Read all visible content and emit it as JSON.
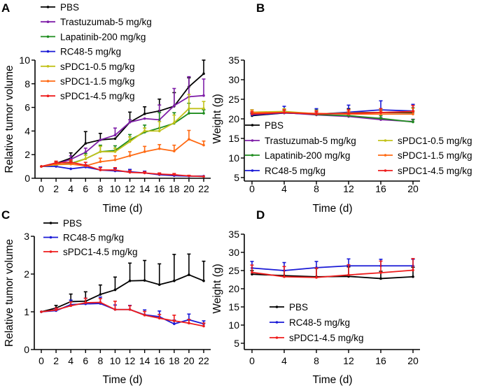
{
  "chart_data": [
    {
      "panel": "A",
      "type": "line",
      "title": "",
      "xlabel": "Time (d)",
      "ylabel": "Relative tumor volume",
      "x": [
        0,
        2,
        4,
        6,
        8,
        10,
        12,
        14,
        16,
        18,
        20,
        22
      ],
      "xticks": [
        "0",
        "2",
        "4",
        "6",
        "8",
        "10",
        "12",
        "14",
        "16",
        "18",
        "20",
        "22"
      ],
      "yticks": [
        "0",
        "2",
        "4",
        "6",
        "8",
        "10"
      ],
      "xlim": [
        0,
        22
      ],
      "ylim": [
        0,
        10
      ],
      "legend_position": "top-left",
      "series": [
        {
          "name": "PBS",
          "color": "#000000",
          "values": [
            1.0,
            1.25,
            1.7,
            2.95,
            3.25,
            3.35,
            4.75,
            5.45,
            5.7,
            6.1,
            7.75,
            8.85
          ],
          "err": [
            0,
            0.15,
            0.45,
            1.0,
            0.55,
            0,
            0.85,
            0.6,
            1.0,
            1.15,
            0.75,
            1.15
          ]
        },
        {
          "name": "Trastuzumab-5 mg/kg",
          "color": "#7f1fa8",
          "values": [
            1.0,
            1.2,
            1.6,
            2.2,
            3.25,
            3.65,
            4.75,
            5.05,
            4.95,
            6.15,
            6.9,
            7.0
          ],
          "err": [
            0,
            0.15,
            0.3,
            0.35,
            0,
            0.6,
            0.2,
            0,
            1.25,
            1.45,
            1.7,
            1.4
          ]
        },
        {
          "name": "Lapatinib-200 mg/kg",
          "color": "#1e8c1e",
          "values": [
            1.0,
            1.15,
            1.25,
            1.65,
            2.25,
            2.35,
            3.25,
            3.9,
            4.25,
            4.65,
            5.5,
            5.5
          ],
          "err": [
            0,
            0.1,
            0.2,
            0.45,
            0.55,
            0.4,
            0.45,
            0.6,
            1.3,
            0.9,
            0.85,
            0.3
          ]
        },
        {
          "name": "RC48-5 mg/kg",
          "color": "#1a1ad6",
          "values": [
            1.0,
            1.0,
            0.8,
            0.95,
            0.7,
            0.62,
            0.55,
            0.45,
            0.3,
            0.22,
            0.18,
            0.18
          ],
          "err": [
            0,
            0.1,
            0,
            0.2,
            0.25,
            0.2,
            0.2,
            0.15,
            0.1,
            0.05,
            0.05,
            0
          ]
        },
        {
          "name": "sPDC1-0.5 mg/kg",
          "color": "#c2c21a",
          "values": [
            1.0,
            1.15,
            1.2,
            1.65,
            2.25,
            2.25,
            3.1,
            4.0,
            4.0,
            4.7,
            5.9,
            5.9
          ],
          "err": [
            0,
            0.1,
            0.2,
            0.3,
            0.45,
            0.3,
            0.4,
            0.25,
            0.8,
            0.65,
            1.2,
            0.6
          ]
        },
        {
          "name": "sPDC1-1.5 mg/kg",
          "color": "#ff6a13",
          "values": [
            1.0,
            1.2,
            1.2,
            1.05,
            1.4,
            1.55,
            1.9,
            2.25,
            2.5,
            2.3,
            3.3,
            2.8
          ],
          "err": [
            0,
            0.15,
            0.2,
            0,
            0.3,
            0.35,
            0.35,
            0.45,
            0.35,
            0.5,
            0.75,
            0.35
          ]
        },
        {
          "name": "sPDC1-4.5 mg/kg",
          "color": "#ee1c1c",
          "values": [
            1.0,
            1.3,
            1.35,
            1.1,
            0.7,
            0.7,
            0.5,
            0.45,
            0.35,
            0.3,
            0.2,
            0.15
          ],
          "err": [
            0,
            0.15,
            0.2,
            0.25,
            0.2,
            0.2,
            0.15,
            0.1,
            0.1,
            0.1,
            0.05,
            0
          ]
        }
      ]
    },
    {
      "panel": "B",
      "type": "line",
      "title": "",
      "xlabel": "Time (d)",
      "ylabel": "Weight (g)",
      "x": [
        0,
        4,
        8,
        12,
        16,
        20
      ],
      "xticks": [
        "0",
        "4",
        "8",
        "12",
        "16",
        "20"
      ],
      "yticks": [
        "5",
        "10",
        "15",
        "20",
        "25",
        "30",
        "35"
      ],
      "xlim": [
        0,
        20
      ],
      "ylim": [
        5,
        35
      ],
      "legend_position": "bottom (two columns)",
      "series": [
        {
          "name": "PBS",
          "color": "#000000",
          "values": [
            20.8,
            21.5,
            21.2,
            21.6,
            21.6,
            21.6
          ],
          "err": [
            0.5,
            0.8,
            0.8,
            1.0,
            1.0,
            1.2
          ]
        },
        {
          "name": "Trastuzumab-5 mg/kg",
          "color": "#7f1fa8",
          "values": [
            21.3,
            21.6,
            21.0,
            20.6,
            19.8,
            19.3
          ],
          "err": [
            0.4,
            0.6,
            0.6,
            0.5,
            0.5,
            0.6
          ]
        },
        {
          "name": "Lapatinib-200 mg/kg",
          "color": "#1e8c1e",
          "values": [
            21.5,
            21.7,
            21.1,
            20.8,
            20.1,
            19.2
          ],
          "err": [
            0.8,
            0.6,
            1.2,
            0.8,
            0.7,
            0.6
          ]
        },
        {
          "name": "RC48-5 mg/kg",
          "color": "#1a1ad6",
          "values": [
            21.0,
            21.5,
            21.2,
            21.7,
            22.3,
            22.0
          ],
          "err": [
            0.5,
            1.7,
            1.4,
            1.8,
            2.3,
            1.7
          ]
        },
        {
          "name": "sPDC1-0.5 mg/kg",
          "color": "#c2c21a",
          "values": [
            21.7,
            21.9,
            21.3,
            21.5,
            21.6,
            21.8
          ],
          "err": [
            0.6,
            0.7,
            0.7,
            0.8,
            0.8,
            0.9
          ]
        },
        {
          "name": "sPDC1-1.5 mg/kg",
          "color": "#ff6a13",
          "values": [
            21.6,
            21.6,
            21.4,
            21.2,
            21.2,
            21.2
          ],
          "err": [
            0.6,
            0.7,
            0.7,
            0.7,
            0.8,
            0.8
          ]
        },
        {
          "name": "sPDC1-4.5 mg/kg",
          "color": "#ee1c1c",
          "values": [
            21.2,
            21.6,
            21.2,
            21.4,
            21.6,
            21.9
          ],
          "err": [
            0.6,
            0.7,
            0.7,
            0.9,
            1.0,
            1.5
          ]
        }
      ]
    },
    {
      "panel": "C",
      "type": "line",
      "title": "",
      "xlabel": "Time (d)",
      "ylabel": "Relative tumor volume",
      "x": [
        0,
        2,
        4,
        6,
        8,
        10,
        12,
        14,
        16,
        18,
        20,
        22
      ],
      "xticks": [
        "0",
        "2",
        "4",
        "6",
        "8",
        "10",
        "12",
        "14",
        "16",
        "18",
        "20",
        "22"
      ],
      "yticks": [
        "0",
        "1",
        "2",
        "3"
      ],
      "xlim": [
        0,
        22
      ],
      "ylim": [
        0,
        3
      ],
      "legend_position": "top-left",
      "series": [
        {
          "name": "PBS",
          "color": "#000000",
          "values": [
            1.0,
            1.1,
            1.27,
            1.28,
            1.46,
            1.58,
            1.82,
            1.83,
            1.72,
            1.82,
            1.98,
            1.82
          ],
          "err": [
            0,
            0.07,
            0.2,
            0.25,
            0.25,
            0.34,
            0.47,
            0.53,
            0.55,
            0.7,
            0.55,
            0.52
          ]
        },
        {
          "name": "RC48-5 mg/kg",
          "color": "#1a1ad6",
          "values": [
            1.0,
            1.03,
            1.19,
            1.21,
            1.22,
            1.06,
            1.06,
            0.92,
            0.87,
            0.68,
            0.79,
            0.68
          ],
          "err": [
            0,
            0.05,
            0.12,
            0.15,
            0.17,
            0.12,
            0.11,
            0.13,
            0.15,
            0.1,
            0.15,
            0.08
          ]
        },
        {
          "name": "sPDC1-4.5 mg/kg",
          "color": "#ee1c1c",
          "values": [
            1.0,
            1.05,
            1.16,
            1.24,
            1.25,
            1.06,
            1.06,
            0.91,
            0.83,
            0.76,
            0.7,
            0.62
          ],
          "err": [
            0,
            0.05,
            0.1,
            0.12,
            0.1,
            0.22,
            0.1,
            0.1,
            0.1,
            0.15,
            0.1,
            0.08
          ]
        }
      ]
    },
    {
      "panel": "D",
      "type": "line",
      "title": "",
      "xlabel": "Time (d)",
      "ylabel": "Weight (g)",
      "x": [
        0,
        4,
        8,
        12,
        16,
        20
      ],
      "xticks": [
        "0",
        "4",
        "8",
        "12",
        "16",
        "20"
      ],
      "yticks": [
        "5",
        "10",
        "15",
        "20",
        "25",
        "30",
        "35"
      ],
      "xlim": [
        0,
        20
      ],
      "ylim": [
        5,
        35
      ],
      "legend_position": "bottom-left",
      "series": [
        {
          "name": "PBS",
          "color": "#000000",
          "values": [
            24.0,
            23.6,
            23.3,
            23.4,
            22.8,
            23.3
          ],
          "err": [
            1.0,
            1.4,
            2.3,
            2.6,
            2.0,
            2.6
          ]
        },
        {
          "name": "RC48-5 mg/kg",
          "color": "#1a1ad6",
          "values": [
            25.7,
            25.0,
            25.8,
            26.3,
            26.3,
            26.3
          ],
          "err": [
            1.8,
            2.2,
            1.7,
            1.9,
            1.8,
            1.8
          ]
        },
        {
          "name": "sPDC1-4.5 mg/kg",
          "color": "#ee1c1c",
          "values": [
            24.5,
            23.3,
            23.1,
            23.8,
            24.4,
            25.1
          ],
          "err": [
            2.0,
            2.8,
            2.6,
            2.8,
            3.2,
            3.2
          ]
        }
      ]
    }
  ]
}
